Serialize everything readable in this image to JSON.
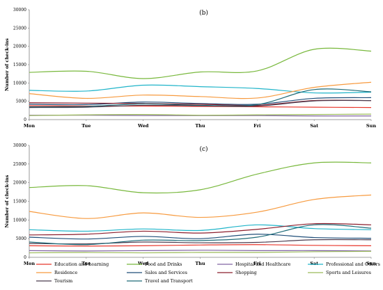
{
  "chart_data": [
    {
      "type": "line",
      "title": "(b)",
      "ylabel": "Number of check-ins",
      "categories": [
        "Mon",
        "Tue",
        "Wed",
        "Thu",
        "Fri",
        "Sat",
        "Sun"
      ],
      "ylim": [
        0,
        30000
      ],
      "yticks": [
        0,
        5000,
        10000,
        15000,
        20000,
        25000,
        30000
      ],
      "grid": false,
      "series": [
        {
          "name": "Education and Learning",
          "color": "#e8362b",
          "values": [
            3800,
            3700,
            3700,
            3600,
            3500,
            3400,
            3300
          ]
        },
        {
          "name": "Food and Drinks",
          "color": "#78b83c",
          "values": [
            12900,
            13200,
            11200,
            13000,
            13300,
            19200,
            18700
          ]
        },
        {
          "name": "Hospital and Healthcare",
          "color": "#8064a2",
          "values": [
            1200,
            1200,
            1100,
            1100,
            1100,
            1000,
            1000
          ]
        },
        {
          "name": "Professional and Others",
          "color": "#1fb4c9",
          "values": [
            8000,
            7800,
            9400,
            9000,
            8500,
            7300,
            7500
          ]
        },
        {
          "name": "Residence",
          "color": "#f79a3e",
          "values": [
            7100,
            5800,
            6700,
            6300,
            5900,
            8800,
            10200
          ]
        },
        {
          "name": "Sales and Services",
          "color": "#1f4e79",
          "values": [
            4200,
            4100,
            4800,
            4400,
            4200,
            5800,
            6000
          ]
        },
        {
          "name": "Shopping",
          "color": "#8b1d2c",
          "values": [
            4600,
            4500,
            4400,
            4200,
            3900,
            5200,
            5200
          ]
        },
        {
          "name": "Sports and Leisures",
          "color": "#9bbb59",
          "values": [
            1100,
            1300,
            1400,
            1200,
            1300,
            1400,
            1500
          ]
        },
        {
          "name": "Tourism",
          "color": "#4a3b4e",
          "values": [
            3300,
            3400,
            3900,
            3800,
            3700,
            5100,
            5200
          ]
        },
        {
          "name": "Travel and Transport",
          "color": "#1e6b78",
          "values": [
            3500,
            3600,
            4300,
            3900,
            4100,
            8200,
            7600
          ]
        }
      ]
    },
    {
      "type": "line",
      "title": "(c)",
      "ylabel": "Number of check-ins",
      "categories": [
        "Mon",
        "Tue",
        "Wed",
        "Thu",
        "Fri",
        "Sat",
        "Sun"
      ],
      "ylim": [
        0,
        30000
      ],
      "yticks": [
        0,
        5000,
        10000,
        15000,
        20000,
        25000,
        30000
      ],
      "grid": false,
      "series": [
        {
          "name": "Education and Learning",
          "color": "#e8362b",
          "values": [
            3100,
            3000,
            3100,
            3300,
            3400,
            3200,
            3100
          ]
        },
        {
          "name": "Food and Drinks",
          "color": "#78b83c",
          "values": [
            18700,
            19200,
            17300,
            18100,
            22300,
            25300,
            25300
          ]
        },
        {
          "name": "Hospital and Healthcare",
          "color": "#8064a2",
          "values": [
            1800,
            1700,
            1800,
            1900,
            1800,
            1800,
            1700
          ]
        },
        {
          "name": "Professional and Others",
          "color": "#1fb4c9",
          "values": [
            7400,
            7000,
            7600,
            7200,
            8700,
            7700,
            7400
          ]
        },
        {
          "name": "Residence",
          "color": "#f79a3e",
          "values": [
            12300,
            10400,
            11900,
            10700,
            12100,
            15500,
            16700
          ]
        },
        {
          "name": "Sales and Services",
          "color": "#1f4e79",
          "values": [
            5400,
            4900,
            5600,
            5000,
            6200,
            5300,
            5100
          ]
        },
        {
          "name": "Shopping",
          "color": "#8b1d2c",
          "values": [
            6000,
            6200,
            7000,
            6500,
            7500,
            9000,
            8700
          ]
        },
        {
          "name": "Sports and Leisures",
          "color": "#9bbb59",
          "values": [
            1200,
            1300,
            1200,
            1300,
            1300,
            1500,
            1600
          ]
        },
        {
          "name": "Tourism",
          "color": "#4a3b4e",
          "values": [
            3700,
            3600,
            4100,
            3900,
            4000,
            4700,
            4700
          ]
        },
        {
          "name": "Travel and Transport",
          "color": "#1e6b78",
          "values": [
            4100,
            3400,
            4600,
            4500,
            5400,
            8700,
            7800
          ]
        }
      ]
    }
  ]
}
